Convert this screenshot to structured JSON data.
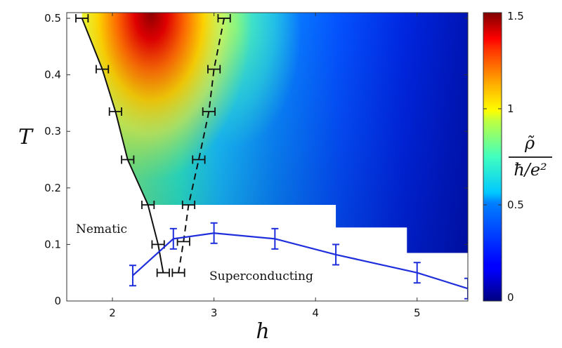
{
  "chart_data": {
    "type": "heatmap",
    "title": "",
    "xlabel": "h",
    "ylabel": "T",
    "xlim": [
      1.55,
      5.5
    ],
    "ylim": [
      0,
      0.51
    ],
    "xticks": [
      2,
      3,
      4,
      5
    ],
    "yticks": [
      0,
      0.1,
      0.2,
      0.3,
      0.4,
      0.5
    ],
    "xtick_labels": [
      "2",
      "3",
      "4",
      "5"
    ],
    "ytick_labels": [
      "0",
      "0.1",
      "0.2",
      "0.3",
      "0.4",
      "0.5"
    ],
    "colorbar": {
      "label_numerator": "ρ̃",
      "label_denominator": "ħ/e²",
      "range": [
        0,
        1.5
      ],
      "ticks": [
        0,
        0.5,
        1,
        1.5
      ],
      "tick_labels": [
        "0",
        "0.5",
        "1",
        "1.5"
      ],
      "colormap": "jet"
    },
    "white_region_steps": [
      {
        "h": 4.2,
        "T": 0.17
      },
      {
        "h": 4.9,
        "T": 0.13
      },
      {
        "h": 5.5,
        "T": 0.085
      }
    ],
    "series": [
      {
        "style": "solid",
        "color": "#111111",
        "x": [
          1.7,
          1.9,
          2.03,
          2.15,
          2.35,
          2.45,
          2.5
        ],
        "y": [
          0.5,
          0.41,
          0.335,
          0.25,
          0.17,
          0.1,
          0.05
        ],
        "xerr": [
          0.06,
          0.06,
          0.06,
          0.06,
          0.06,
          0.06,
          0.06
        ]
      },
      {
        "style": "dashed",
        "color": "#111111",
        "x": [
          3.1,
          3.0,
          2.95,
          2.85,
          2.75,
          2.7,
          2.65
        ],
        "y": [
          0.5,
          0.41,
          0.335,
          0.25,
          0.17,
          0.105,
          0.05
        ],
        "xerr": [
          0.06,
          0.06,
          0.06,
          0.06,
          0.06,
          0.06,
          0.06
        ]
      },
      {
        "style": "solid",
        "color": "#1f2fdc",
        "x": [
          2.2,
          2.6,
          3.0,
          3.6,
          4.2,
          5.0,
          5.5
        ],
        "y": [
          0.045,
          0.11,
          0.12,
          0.11,
          0.082,
          0.05,
          0.022
        ],
        "yerr": [
          0.018,
          0.018,
          0.018,
          0.018,
          0.018,
          0.018,
          0.018
        ]
      }
    ],
    "annotations": [
      {
        "text": "Nematic",
        "h": 1.85,
        "T": 0.12
      },
      {
        "text": "Superconducting",
        "h": 3.55,
        "T": 0.045
      }
    ]
  }
}
